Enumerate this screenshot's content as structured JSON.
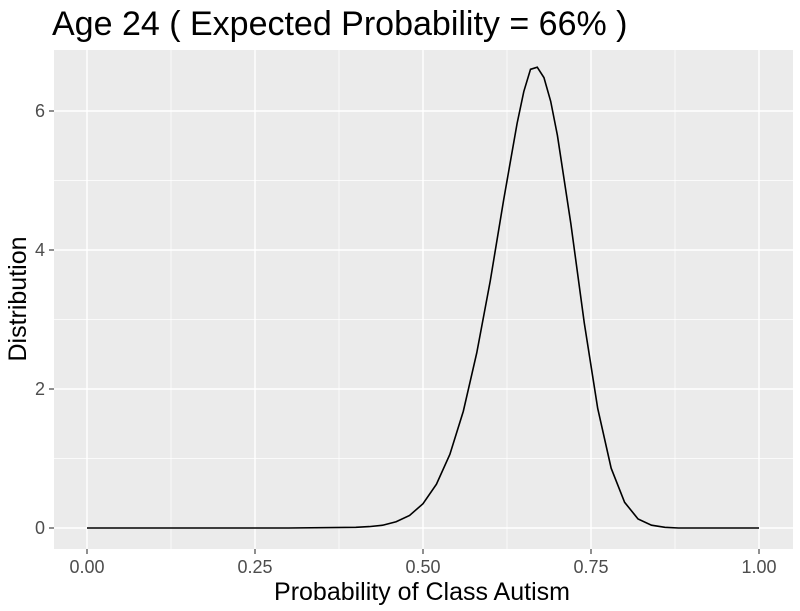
{
  "chart_data": {
    "type": "line",
    "title": "Age  24 ( Expected Probability = 66% )",
    "xlabel": "Probability of Class Autism",
    "ylabel": "Distribution",
    "xlim": [
      0,
      1
    ],
    "ylim": [
      0,
      6.6
    ],
    "x_ticks": [
      0,
      0.25,
      0.5,
      0.75,
      1
    ],
    "x_tick_labels": [
      "0.00",
      "0.25",
      "0.50",
      "0.75",
      "1.00"
    ],
    "y_ticks": [
      0,
      2,
      4,
      6
    ],
    "y_tick_labels": [
      "0",
      "2",
      "4",
      "6"
    ],
    "grid": true,
    "background": "#ebebeb",
    "grid_color": "#ffffff",
    "line_color": "#000000",
    "series": [
      {
        "x": [
          0.0,
          0.3,
          0.4,
          0.42,
          0.44,
          0.46,
          0.48,
          0.5,
          0.52,
          0.54,
          0.56,
          0.58,
          0.6,
          0.62,
          0.64,
          0.65,
          0.66,
          0.67,
          0.68,
          0.69,
          0.7,
          0.72,
          0.74,
          0.76,
          0.78,
          0.8,
          0.82,
          0.84,
          0.86,
          0.88,
          0.9,
          1.0
        ],
        "y": [
          0.0,
          0.0,
          0.01,
          0.02,
          0.04,
          0.09,
          0.18,
          0.35,
          0.63,
          1.06,
          1.68,
          2.52,
          3.55,
          4.72,
          5.82,
          6.28,
          6.6,
          6.63,
          6.48,
          6.14,
          5.65,
          4.38,
          2.95,
          1.72,
          0.86,
          0.37,
          0.13,
          0.04,
          0.01,
          0.0,
          0.0,
          0.0
        ]
      }
    ]
  }
}
